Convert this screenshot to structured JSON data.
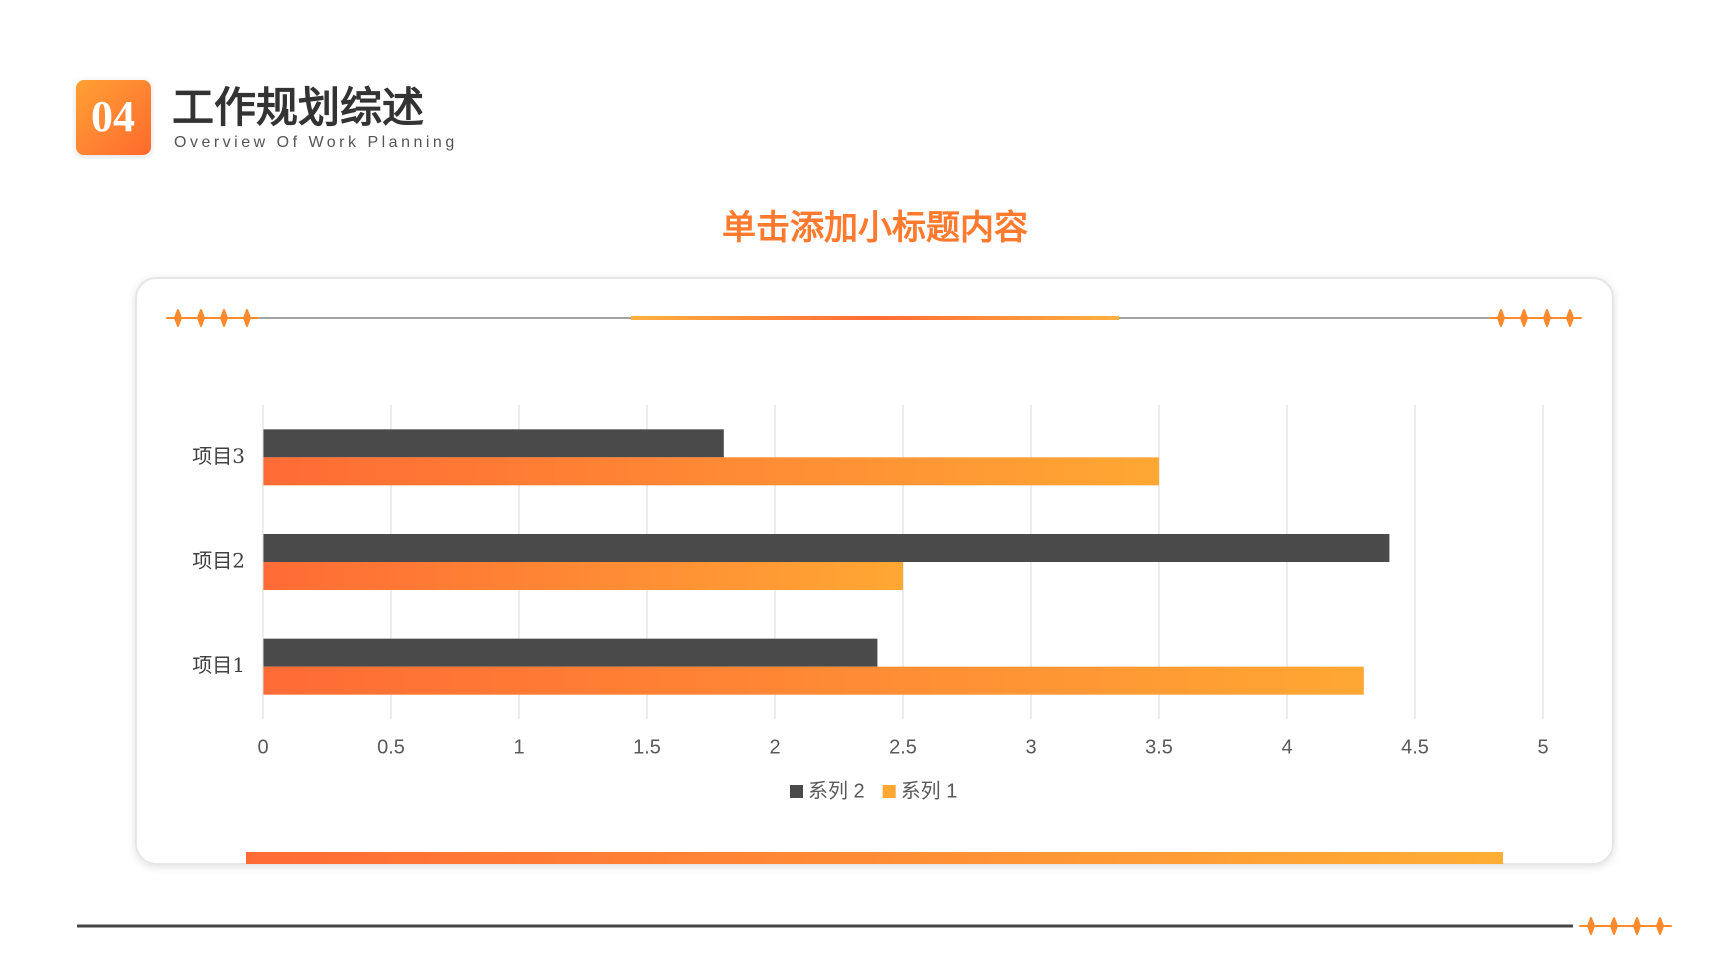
{
  "header": {
    "badge": "04",
    "title": "工作规划综述",
    "subtitle": "Overview Of Work Planning"
  },
  "chart_data": {
    "type": "bar",
    "orientation": "horizontal",
    "title": "单击添加小标题内容",
    "categories": [
      "项目1",
      "项目2",
      "项目3"
    ],
    "series": [
      {
        "name": "系列 2",
        "color": "#4a4a4a",
        "values": [
          2.4,
          4.4,
          1.8
        ]
      },
      {
        "name": "系列 1",
        "color": "#ffa733",
        "values": [
          4.3,
          2.5,
          3.5
        ]
      }
    ],
    "xlim": [
      0,
      5
    ],
    "xticks": [
      0,
      0.5,
      1,
      1.5,
      2,
      2.5,
      3,
      3.5,
      4,
      4.5,
      5
    ],
    "grid": true,
    "legend": "bottom"
  }
}
